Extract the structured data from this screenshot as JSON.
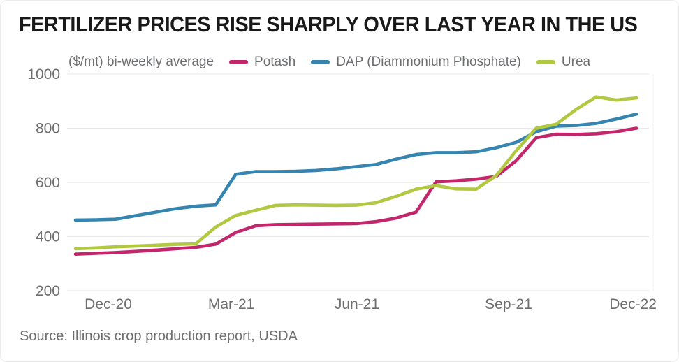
{
  "title": "FERTILIZER PRICES RISE SHARPLY OVER LAST YEAR IN THE US",
  "source": "Source: Illinois crop production report, USDA",
  "chart_data": {
    "type": "line",
    "title": "FERTILIZER PRICES RISE SHARPLY OVER LAST YEAR IN THE US",
    "unit_label": "($/mt) bi-weekly average",
    "ylabel": "$/mt",
    "frequency": "bi-weekly",
    "ylim": [
      200,
      1000
    ],
    "y_ticks": [
      1000,
      800,
      600,
      400,
      200
    ],
    "grid": "horizontal",
    "legend_position": "top",
    "x_ticks": [
      {
        "label": "Dec-20",
        "at": 1.64
      },
      {
        "label": "Mar-21",
        "at": 7.78
      },
      {
        "label": "Jun-21",
        "at": 14.05
      },
      {
        "label": "Sep-21",
        "at": 21.62
      },
      {
        "label": "Dec-22",
        "at": 27.83
      }
    ],
    "draw_order": [
      1,
      0,
      2
    ],
    "series": [
      {
        "name": "Potash",
        "color": "#c2266b",
        "values": [
          335,
          338,
          341,
          345,
          350,
          355,
          360,
          372,
          415,
          440,
          444,
          445,
          446,
          447,
          448,
          455,
          468,
          490,
          602,
          606,
          612,
          622,
          680,
          765,
          778,
          777,
          780,
          787,
          800
        ]
      },
      {
        "name": "DAP (Diammonium Phosphate)",
        "color": "#3585b0",
        "values": [
          461,
          462,
          464,
          477,
          490,
          503,
          512,
          517,
          630,
          640,
          640,
          641,
          644,
          650,
          658,
          666,
          686,
          703,
          710,
          710,
          713,
          728,
          748,
          787,
          808,
          810,
          818,
          834,
          852
        ]
      },
      {
        "name": "Urea",
        "color": "#b1c841",
        "values": [
          355,
          358,
          362,
          365,
          368,
          371,
          373,
          435,
          478,
          497,
          515,
          517,
          516,
          515,
          516,
          525,
          548,
          575,
          588,
          576,
          575,
          625,
          717,
          800,
          815,
          870,
          916,
          904,
          912
        ]
      }
    ]
  }
}
